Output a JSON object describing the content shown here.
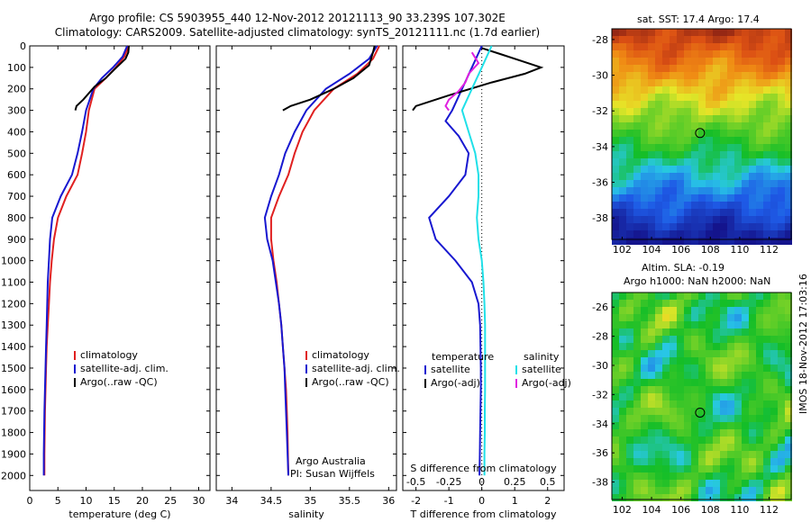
{
  "header": {
    "line1": "Argo profile: CS 5903955_440 12-Nov-2012 20121113_90 33.239S 107.302E",
    "line2": "Climatology: CARS2009. Satellite-adjusted climatology: synTS_20121111.nc (1.7d earlier)"
  },
  "sst_panel": {
    "title": "sat. SST: 17.4 Argo: 17.4"
  },
  "sla_panel": {
    "title1": "Altim. SLA: -0.19",
    "title2": "Argo h1000: NaN h2000: NaN"
  },
  "credits": {
    "argo": "Argo Australia",
    "pi": "PI: Susan Wijffels",
    "imos": "IMOS 18-Nov-2012 17:03:16"
  },
  "colors": {
    "climatology": "#e02020",
    "satellite": "#1818d0",
    "argo": "#000000",
    "salinity_sat": "#20e0e8",
    "salinity_argo": "#e020e0"
  },
  "chart_data": [
    {
      "type": "line",
      "xlabel": "temperature (deg C)",
      "xlim": [
        0,
        32
      ],
      "xticks": [
        0,
        5,
        10,
        15,
        20,
        25,
        30
      ],
      "ylim": [
        2070,
        0
      ],
      "yticks": [
        0,
        100,
        200,
        300,
        400,
        500,
        600,
        700,
        800,
        900,
        1000,
        1100,
        1200,
        1300,
        1400,
        1500,
        1600,
        1700,
        1800,
        1900,
        2000
      ],
      "legend": [
        "climatology",
        "satellite-adj. clim.",
        "Argo(..raw -QC)"
      ],
      "series": [
        {
          "name": "climatology",
          "color": "#e02020",
          "x": [
            17.6,
            16.8,
            15.3,
            13.5,
            11.5,
            10.5,
            10.0,
            9.3,
            8.5,
            6.5,
            5.0,
            4.3,
            3.9,
            3.6,
            3.4,
            3.2,
            3.0,
            2.9,
            2.8,
            2.7,
            2.6,
            2.6
          ],
          "y": [
            0,
            50,
            100,
            150,
            200,
            300,
            400,
            500,
            600,
            700,
            800,
            900,
            1000,
            1100,
            1200,
            1300,
            1400,
            1500,
            1600,
            1700,
            1900,
            2000
          ]
        },
        {
          "name": "satellite-adj. clim.",
          "color": "#1818d0",
          "x": [
            17.3,
            16.5,
            14.8,
            12.8,
            11.3,
            10.0,
            9.3,
            8.5,
            7.5,
            5.5,
            4.0,
            3.6,
            3.4,
            3.2,
            3.1,
            3.0,
            2.9,
            2.8,
            2.7,
            2.6,
            2.5,
            2.5
          ],
          "y": [
            0,
            50,
            100,
            150,
            200,
            300,
            400,
            500,
            600,
            700,
            800,
            900,
            1000,
            1100,
            1200,
            1300,
            1400,
            1500,
            1600,
            1700,
            1900,
            2000
          ]
        },
        {
          "name": "Argo(..raw -QC)",
          "color": "#000000",
          "x": [
            17.6,
            17.5,
            17.0,
            15.0,
            13.5,
            11.5,
            9.5,
            8.3,
            8.1
          ],
          "y": [
            0,
            30,
            60,
            110,
            150,
            190,
            250,
            280,
            300
          ]
        }
      ]
    },
    {
      "type": "line",
      "xlabel": "salinity",
      "xlim": [
        33.8,
        36.1
      ],
      "xticks": [
        34,
        34.5,
        35,
        35.5,
        36
      ],
      "ylim": [
        2070,
        0
      ],
      "legend": [
        "climatology",
        "satellite-adj. clim.",
        "Argo(..raw -QC)"
      ],
      "series": [
        {
          "name": "climatology",
          "color": "#e02020",
          "x": [
            35.88,
            35.8,
            35.6,
            35.3,
            35.05,
            34.9,
            34.8,
            34.72,
            34.6,
            34.5,
            34.5,
            34.53,
            34.57,
            34.6,
            34.63,
            34.65,
            34.67,
            34.69,
            34.7,
            34.71,
            34.72
          ],
          "y": [
            0,
            60,
            130,
            200,
            300,
            400,
            500,
            600,
            700,
            800,
            900,
            1000,
            1100,
            1200,
            1300,
            1400,
            1500,
            1600,
            1700,
            1800,
            2000
          ]
        },
        {
          "name": "satellite-adj. clim.",
          "color": "#1818d0",
          "x": [
            35.85,
            35.75,
            35.5,
            35.2,
            34.95,
            34.8,
            34.68,
            34.6,
            34.5,
            34.42,
            34.45,
            34.52,
            34.56,
            34.6,
            34.63,
            34.65,
            34.67,
            34.68,
            34.69,
            34.7,
            34.72
          ],
          "y": [
            0,
            60,
            130,
            200,
            300,
            400,
            500,
            600,
            700,
            800,
            900,
            1000,
            1100,
            1200,
            1300,
            1400,
            1500,
            1600,
            1700,
            1800,
            2000
          ]
        },
        {
          "name": "Argo(..raw -QC)",
          "color": "#000000",
          "x": [
            35.82,
            35.8,
            35.75,
            35.55,
            35.3,
            35.0,
            34.75,
            34.65
          ],
          "y": [
            0,
            30,
            90,
            150,
            200,
            250,
            280,
            300
          ]
        }
      ]
    },
    {
      "type": "line",
      "xlabel": "T difference from climatology",
      "x2label": "S difference from climatology",
      "xlim": [
        -2.4,
        2.5
      ],
      "xticks": [
        -2,
        -1,
        0,
        1,
        2
      ],
      "x2ticks_labels": [
        "-0.5",
        "-0.25",
        "0",
        "0.25",
        "0.5"
      ],
      "ylim": [
        2070,
        0
      ],
      "legend_title_left": "temperature",
      "legend_title_right": "salinity",
      "legend": [
        "satellite",
        "Argo(-adj)",
        "satellite",
        "Argo(-adj)"
      ],
      "series": [
        {
          "name": "satellite",
          "color": "#1818d0",
          "x": [
            0.0,
            -0.3,
            -0.6,
            -0.9,
            -1.1,
            -0.7,
            -0.4,
            -0.5,
            -1.0,
            -1.6,
            -1.4,
            -0.8,
            -0.3,
            -0.1,
            -0.05,
            -0.04,
            -0.03,
            -0.03,
            -0.04,
            -0.05,
            -0.06,
            -0.07
          ],
          "y": [
            0,
            100,
            200,
            300,
            350,
            420,
            500,
            600,
            700,
            800,
            900,
            1000,
            1100,
            1200,
            1300,
            1400,
            1500,
            1600,
            1700,
            1800,
            1900,
            2000
          ]
        },
        {
          "name": "Argo(-adj)",
          "color": "#000000",
          "x": [
            0.0,
            0.6,
            1.2,
            1.8,
            1.3,
            0.3,
            -1.0,
            -2.0,
            -2.1
          ],
          "y": [
            10,
            40,
            70,
            100,
            130,
            170,
            230,
            280,
            300
          ]
        },
        {
          "name": "salinity satellite",
          "color": "#20e0e8",
          "x": [
            0.3,
            0.0,
            -0.3,
            -0.6,
            -0.4,
            -0.2,
            -0.1,
            -0.1,
            -0.15,
            -0.1,
            0.0,
            0.05,
            0.08,
            0.1,
            0.1,
            0.1,
            0.1,
            0.09,
            0.09,
            0.08,
            0.08
          ],
          "y": [
            0,
            100,
            200,
            300,
            400,
            500,
            600,
            700,
            800,
            900,
            1000,
            1100,
            1200,
            1300,
            1400,
            1500,
            1600,
            1700,
            1800,
            1900,
            2000
          ]
        },
        {
          "name": "salinity Argo(-adj)",
          "color": "#e020e0",
          "x": [
            -0.3,
            -0.1,
            -0.4,
            -0.5,
            -0.7,
            -1.0,
            -1.1,
            -1.0
          ],
          "y": [
            30,
            80,
            130,
            170,
            210,
            250,
            280,
            300
          ]
        }
      ]
    },
    {
      "type": "heatmap",
      "title": "sat. SST: 17.4 Argo: 17.4",
      "xlim": [
        101.3,
        113.5
      ],
      "ylim": [
        -39.2,
        -27.4
      ],
      "xticks": [
        102,
        104,
        106,
        108,
        110,
        112
      ],
      "yticks": [
        -28,
        -30,
        -32,
        -34,
        -36,
        -38
      ],
      "marker": {
        "lon": 107.3,
        "lat": -33.24
      }
    },
    {
      "type": "heatmap",
      "title": "Altim. SLA: -0.19",
      "xlim": [
        101.3,
        113.5
      ],
      "ylim": [
        -39.2,
        -25.0
      ],
      "xticks": [
        102,
        104,
        106,
        108,
        110,
        112
      ],
      "yticks": [
        -26,
        -28,
        -30,
        -32,
        -34,
        -36,
        -38
      ],
      "marker": {
        "lon": 107.3,
        "lat": -33.24
      }
    }
  ]
}
